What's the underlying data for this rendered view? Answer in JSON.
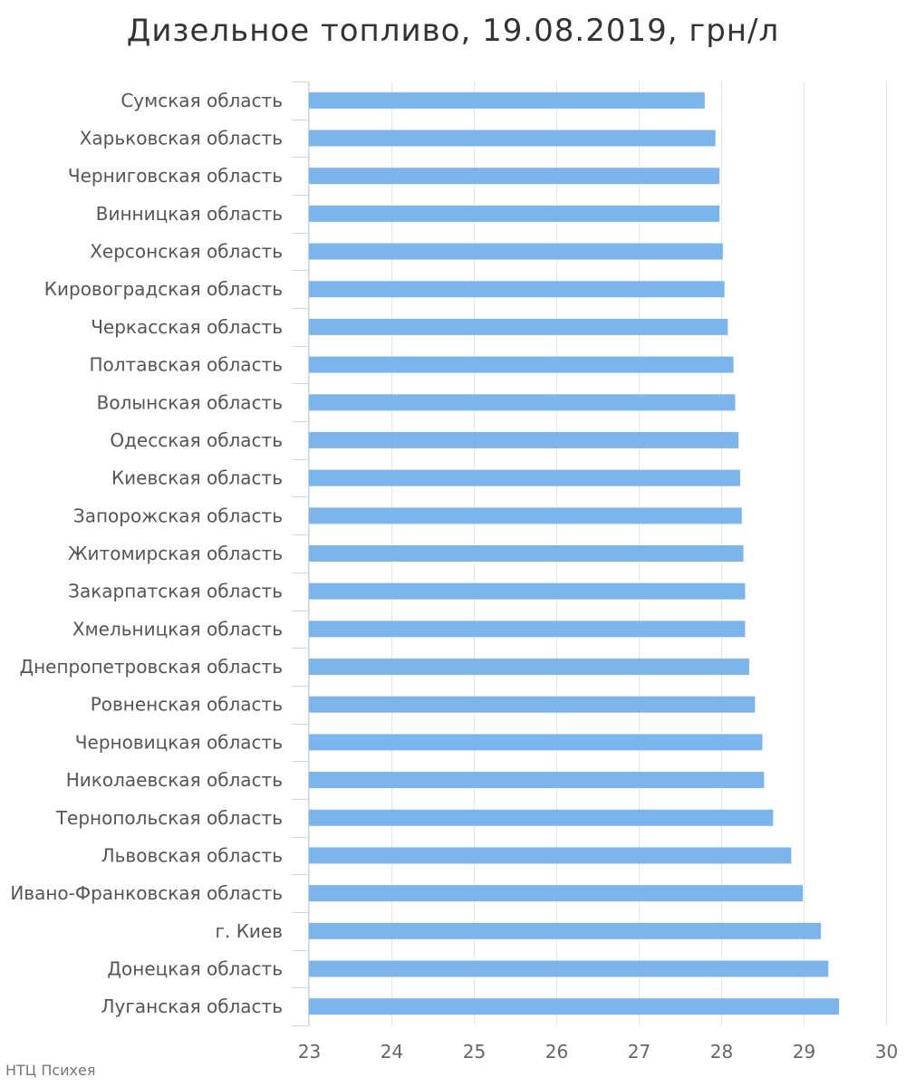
{
  "chart_data": {
    "type": "bar",
    "orientation": "horizontal",
    "title": "Дизельное топливо, 19.08.2019, грн/л",
    "xlabel": "",
    "ylabel": "",
    "xlim": [
      23,
      30
    ],
    "ticks": [
      "23",
      "24",
      "25",
      "26",
      "27",
      "28",
      "29",
      "30"
    ],
    "grid": true,
    "bar_color": "#7cb5ec",
    "categories": [
      "Сумская область",
      "Харьковская область",
      "Черниговская область",
      "Винницкая область",
      "Херсонская область",
      "Кировоградская область",
      "Черкасская область",
      "Полтавская область",
      "Волынская область",
      "Одесская область",
      "Киевская область",
      "Запорожская область",
      "Житомирская область",
      "Закарпатская область",
      "Хмельницкая область",
      "Днепропетровская область",
      "Ровненская область",
      "Черновицкая область",
      "Николаевская область",
      "Тернопольская область",
      "Львовская область",
      "Ивано-Франковская область",
      "г. Киев",
      "Донецкая область",
      "Луганская область"
    ],
    "values": [
      27.8,
      27.93,
      27.98,
      27.98,
      28.02,
      28.04,
      28.08,
      28.15,
      28.17,
      28.21,
      28.23,
      28.25,
      28.27,
      28.29,
      28.29,
      28.34,
      28.41,
      28.5,
      28.52,
      28.63,
      28.85,
      28.99,
      29.21,
      29.3,
      29.43
    ]
  },
  "credits": "НТЦ Психея"
}
